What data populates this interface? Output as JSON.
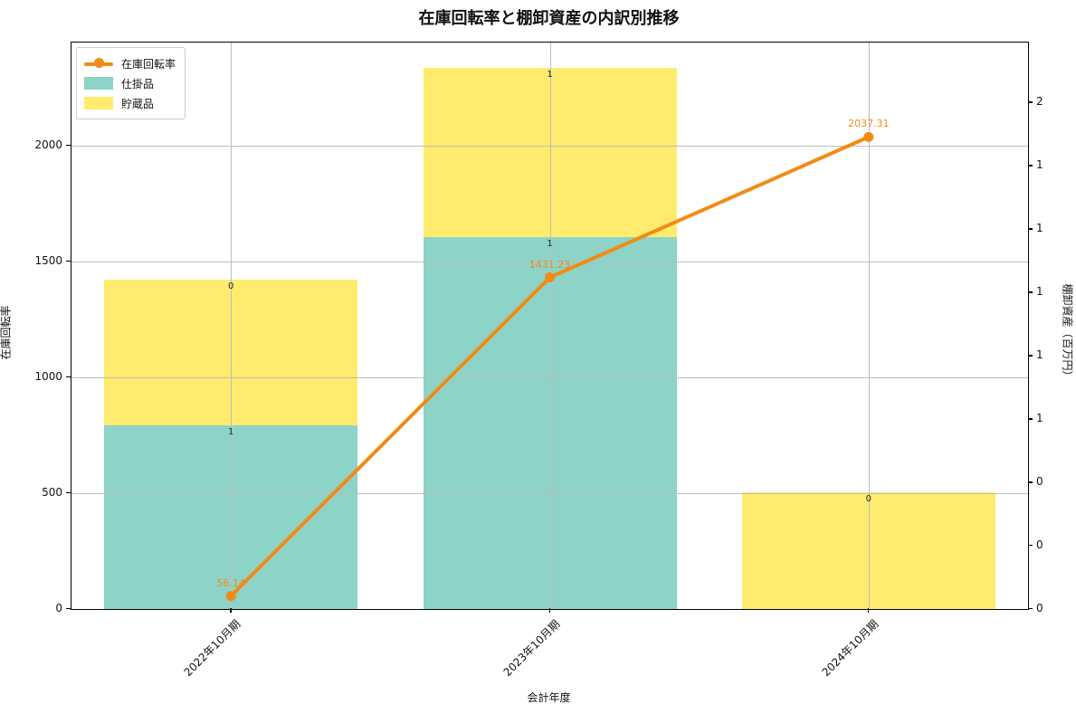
{
  "title": "在庫回転率と棚卸資産の内訳別推移",
  "colors": {
    "line_orange": "#f08c16",
    "bar_teal": "#8dd3c7",
    "bar_yellow": "#ffeb6e",
    "grid": "#bdbdbd",
    "annotation_dark": "#262626"
  },
  "legend": {
    "items": [
      {
        "label": "在庫回転率",
        "type": "line",
        "color": "#f08c16"
      },
      {
        "label": "仕掛品",
        "type": "patch",
        "color": "#8dd3c7"
      },
      {
        "label": "貯蔵品",
        "type": "patch",
        "color": "#ffeb6e"
      }
    ]
  },
  "chart_data": {
    "type": "combo (stacked bar + line)",
    "categories": [
      "2022年10月期",
      "2023年10月期",
      "2024年10月期"
    ],
    "xlabel": "会計年度",
    "grid": "horizontal at left-axis ticks, vertical at category centers, drawn above bars",
    "left_axis": {
      "label": "在庫回転率",
      "ticks": [
        0,
        500,
        1000,
        1500,
        2000
      ],
      "tick_labels": [
        "0",
        "500",
        "1000",
        "1500",
        "2000"
      ],
      "range": [
        0,
        2445
      ]
    },
    "right_axis": {
      "label": "棚卸資産（百万円）",
      "tick_values": [
        0,
        0.2,
        0.4,
        0.6,
        0.8,
        1.0,
        1.2,
        1.4,
        1.6
      ],
      "tick_labels": [
        "0",
        "0",
        "0",
        "1",
        "1",
        "1",
        "1",
        "1",
        "2"
      ],
      "range": [
        0,
        1.79
      ]
    },
    "bar_series": [
      {
        "name": "仕掛品",
        "color": "#8dd3c7",
        "axis": "right",
        "values": [
          0.58,
          1.175,
          0
        ],
        "value_labels": [
          "1",
          "1",
          null
        ]
      },
      {
        "name": "貯蔵品",
        "color": "#ffeb6e",
        "axis": "right",
        "values": [
          0.46,
          0.535,
          0.37
        ],
        "value_labels": [
          "0",
          "1",
          "0"
        ]
      }
    ],
    "line_series": {
      "name": "在庫回転率",
      "color": "#f08c16",
      "axis": "left",
      "values": [
        56.14,
        1431.23,
        2037.31
      ],
      "value_labels": [
        "56.14",
        "1431.23",
        "2037.31"
      ]
    }
  }
}
